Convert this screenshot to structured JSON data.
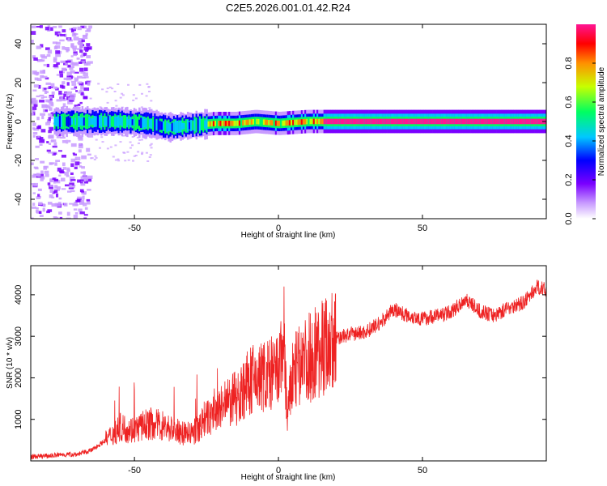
{
  "title": "C2E5.2026.001.01.42.R24",
  "chart_data": [
    {
      "type": "heatmap",
      "xlabel": "Height of straight line (km)",
      "ylabel": "Frequency (Hz)",
      "xlim": [
        -86,
        93
      ],
      "ylim": [
        -50,
        50
      ],
      "xticks": [
        -50,
        0,
        50
      ],
      "yticks": [
        -40,
        -20,
        0,
        20,
        40
      ],
      "colorbar": {
        "label": "Normalized spectral amplitude",
        "range": [
          0,
          1
        ],
        "ticks": [
          "0.0",
          "0.2",
          "0.4",
          "0.6",
          "0.8"
        ],
        "colors": [
          "#ffffff",
          "#c89bff",
          "#7a00ff",
          "#0000ff",
          "#00c8ff",
          "#00ff60",
          "#c8ff00",
          "#ff9000",
          "#ff0000",
          "#ff1493"
        ]
      },
      "signal_track": {
        "description_free": true,
        "x": [
          -86,
          -70,
          -65,
          -55,
          -45,
          -38,
          -30,
          -22,
          -15,
          -8,
          0,
          10,
          15,
          93
        ],
        "y": [
          0,
          0,
          0,
          0,
          -1,
          -3,
          -2,
          -1,
          -1,
          0,
          -1,
          0,
          0,
          0
        ]
      }
    },
    {
      "type": "line",
      "xlabel": "Height of straight line (km)",
      "ylabel": "SNR (10 * v/v)",
      "xlim": [
        -86,
        93
      ],
      "ylim": [
        0,
        4700
      ],
      "xticks": [
        -50,
        0,
        50
      ],
      "yticks": [
        1000,
        2000,
        3000,
        4000
      ],
      "color": "#ee2222",
      "series": [
        {
          "name": "SNR",
          "x": [
            -86,
            -80,
            -75,
            -70,
            -65,
            -60,
            -55,
            -50,
            -45,
            -40,
            -35,
            -30,
            -25,
            -20,
            -15,
            -10,
            -5,
            0,
            2,
            3,
            5,
            10,
            15,
            20,
            25,
            30,
            35,
            40,
            45,
            50,
            55,
            60,
            65,
            70,
            75,
            80,
            85,
            90,
            93
          ],
          "values": [
            100,
            120,
            150,
            160,
            250,
            500,
            800,
            750,
            900,
            850,
            700,
            650,
            1000,
            1250,
            1500,
            1900,
            2050,
            2100,
            3000,
            1000,
            2100,
            2450,
            2750,
            2950,
            3050,
            3100,
            3300,
            3650,
            3500,
            3420,
            3500,
            3580,
            3900,
            3600,
            3500,
            3700,
            3800,
            4200,
            4100
          ]
        }
      ]
    }
  ]
}
